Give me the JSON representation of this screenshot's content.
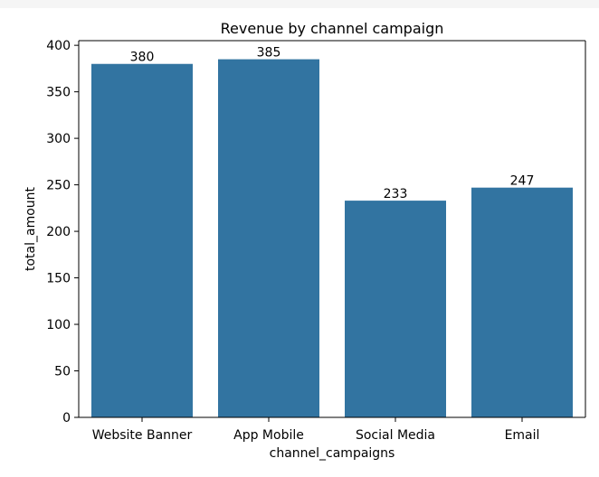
{
  "chart_data": {
    "type": "bar",
    "title": "Revenue by channel campaign",
    "xlabel": "channel_campaigns",
    "ylabel": "total_amount",
    "categories": [
      "Website Banner",
      "App Mobile",
      "Social Media",
      "Email"
    ],
    "values": [
      380,
      385,
      233,
      247
    ],
    "data_labels": [
      "380",
      "385",
      "233",
      "247"
    ],
    "ylim": [
      0,
      405
    ],
    "yticks": [
      0,
      50,
      100,
      150,
      200,
      250,
      300,
      350,
      400
    ],
    "grid": false,
    "legend": "none",
    "colors": {
      "bar": "#3274a1",
      "axis": "#000000",
      "background": "#ffffff"
    }
  }
}
